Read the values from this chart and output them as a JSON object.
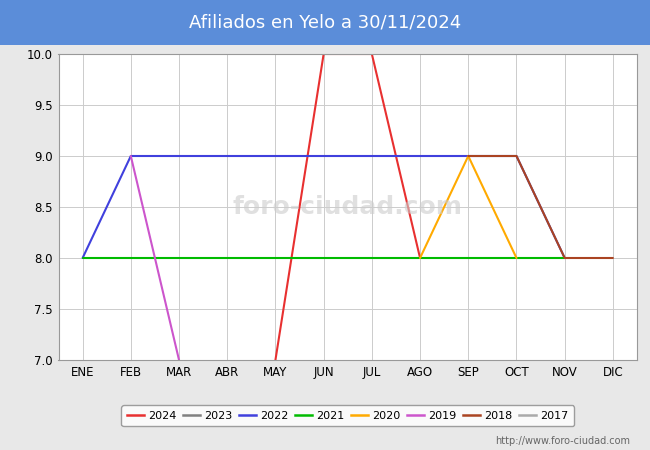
{
  "title": "Afiliados en Yelo a 30/11/2024",
  "title_bg_color": "#5b8dd9",
  "title_text_color": "#ffffff",
  "x_labels": [
    "ENE",
    "FEB",
    "MAR",
    "ABR",
    "MAY",
    "JUN",
    "JUL",
    "AGO",
    "SEP",
    "OCT",
    "NOV",
    "DIC"
  ],
  "ylim": [
    7.0,
    10.0
  ],
  "yticks": [
    7.0,
    7.5,
    8.0,
    8.5,
    9.0,
    9.5,
    10.0
  ],
  "background_color": "#e8e8e8",
  "plot_bg_color": "#e8e8e8",
  "chart_bg_color": "#ffffff",
  "watermark_text": "foro-ciudad.com",
  "url_text": "http://www.foro-ciudad.com",
  "series": [
    {
      "label": "2024",
      "color": "#e83030",
      "data": [
        null,
        null,
        null,
        null,
        7.0,
        10.0,
        10.0,
        8.0,
        null,
        null,
        null,
        null
      ]
    },
    {
      "label": "2023",
      "color": "#808080",
      "data": [
        null,
        null,
        null,
        null,
        null,
        null,
        null,
        null,
        null,
        null,
        null,
        null
      ]
    },
    {
      "label": "2022",
      "color": "#4040dd",
      "data": [
        8.0,
        9.0,
        9.0,
        9.0,
        9.0,
        9.0,
        9.0,
        9.0,
        9.0,
        9.0,
        8.0,
        null
      ]
    },
    {
      "label": "2021",
      "color": "#00bb00",
      "data": [
        8.0,
        8.0,
        8.0,
        8.0,
        8.0,
        8.0,
        8.0,
        8.0,
        8.0,
        8.0,
        8.0,
        null
      ]
    },
    {
      "label": "2020",
      "color": "#ffaa00",
      "data": [
        null,
        null,
        null,
        null,
        null,
        null,
        null,
        8.0,
        9.0,
        8.0,
        null,
        null
      ]
    },
    {
      "label": "2019",
      "color": "#cc55cc",
      "data": [
        null,
        9.0,
        7.0,
        null,
        null,
        null,
        null,
        null,
        null,
        null,
        null,
        null
      ]
    },
    {
      "label": "2018",
      "color": "#aa4422",
      "data": [
        null,
        null,
        null,
        null,
        null,
        null,
        null,
        null,
        9.0,
        9.0,
        8.0,
        8.0
      ]
    },
    {
      "label": "2017",
      "color": "#aaaaaa",
      "data": [
        null,
        null,
        null,
        null,
        null,
        null,
        null,
        null,
        10.0,
        10.0,
        null,
        null
      ]
    }
  ]
}
